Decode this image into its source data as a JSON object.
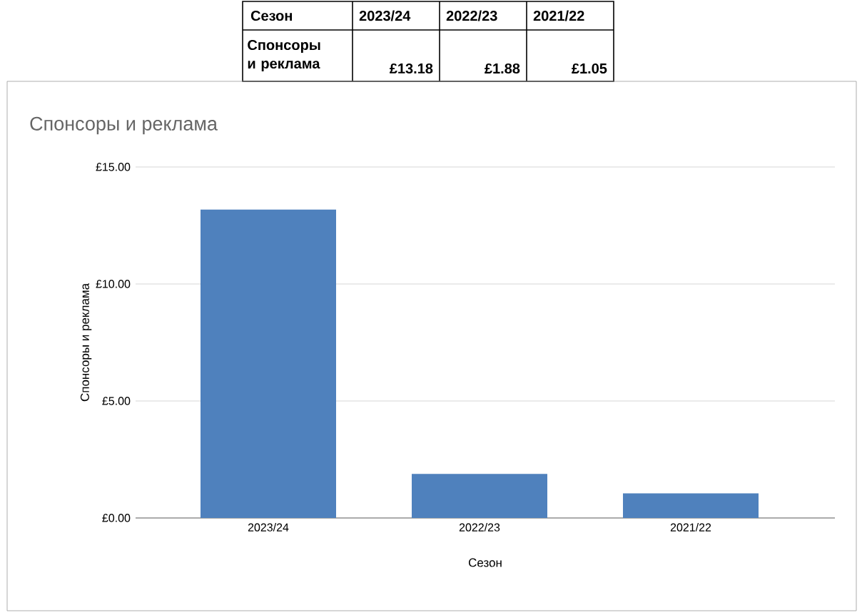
{
  "chart_data": {
    "type": "bar",
    "title": "Спонсоры и реклама",
    "xlabel": "Сезон",
    "ylabel": "Спонсоры и реклама",
    "categories": [
      "2023/24",
      "2022/23",
      "2021/22"
    ],
    "values": [
      13.18,
      1.88,
      1.05
    ],
    "color": "#4f81bd",
    "ylim": [
      0,
      15
    ],
    "yticks": [
      {
        "value": 0,
        "label": "£0.00"
      },
      {
        "value": 5,
        "label": "£5.00"
      },
      {
        "value": 10,
        "label": "£10.00"
      },
      {
        "value": 15,
        "label": "£15.00"
      }
    ],
    "grid": "y",
    "annotations": [
      "Сезон",
      "Спонсоры и реклама",
      "£13.18",
      "£1.88",
      "£1.05"
    ]
  }
}
